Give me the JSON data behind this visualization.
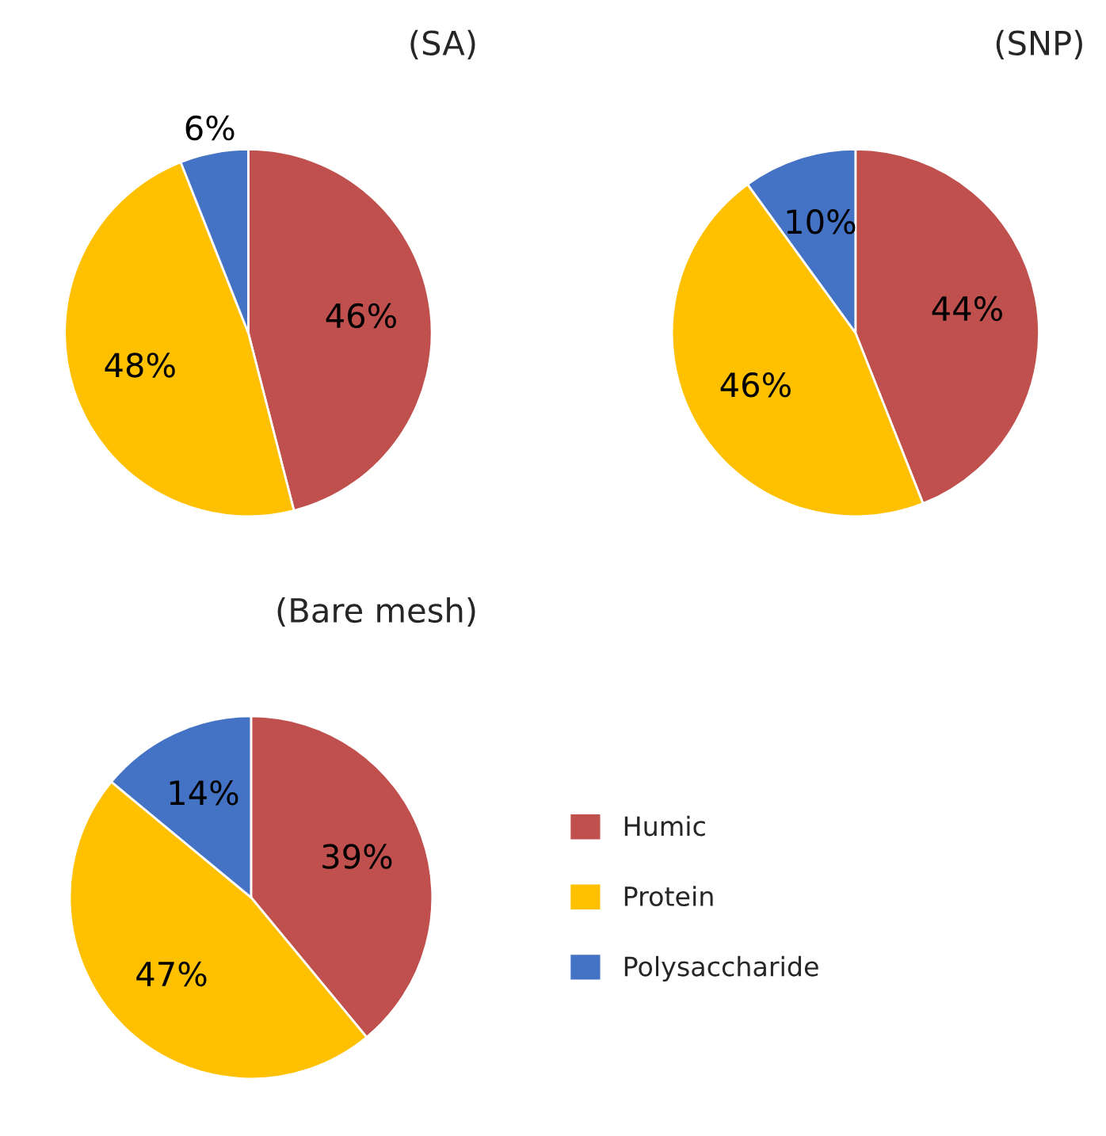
{
  "chart_data": [
    {
      "type": "pie",
      "title": "(SA)",
      "categories": [
        null,
        null,
        null
      ],
      "values": [
        46,
        48,
        6
      ],
      "colors": [
        "#c0504d",
        "#ffc000",
        "#4472c4"
      ],
      "value_labels": [
        "46%",
        "48%",
        "6%"
      ]
    },
    {
      "type": "pie",
      "title": "(SNP)",
      "categories": [
        null,
        null,
        null
      ],
      "values": [
        44,
        46,
        10
      ],
      "colors": [
        "#c0504d",
        "#ffc000",
        "#4472c4"
      ],
      "value_labels": [
        "44%",
        "46%",
        "10%"
      ]
    },
    {
      "type": "pie",
      "title": "(Bare mesh)",
      "categories": [
        "Humic",
        "Protein",
        "Polysaccharide"
      ],
      "values": [
        39,
        47,
        14
      ],
      "colors": [
        "#c0504d",
        "#ffc000",
        "#4472c4"
      ],
      "value_labels": [
        "39%",
        "47%",
        "14%"
      ],
      "legend": "right"
    }
  ]
}
